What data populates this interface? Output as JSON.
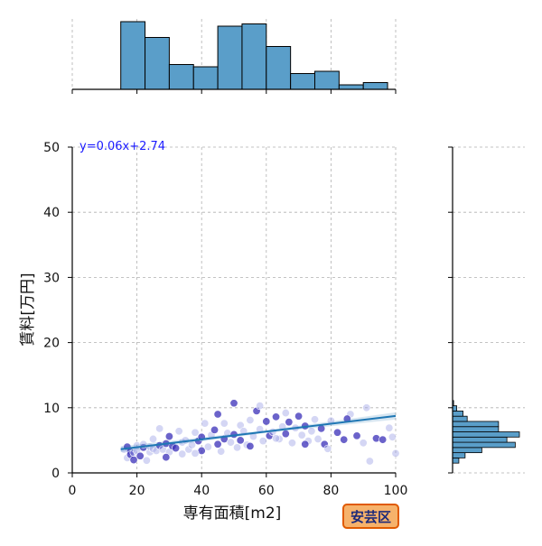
{
  "chart_data": {
    "type": "scatter",
    "xlabel": "専有面積[m2]",
    "ylabel": "賃料[万円]",
    "xlim": [
      0,
      100
    ],
    "ylim": [
      0,
      50
    ],
    "xticks": [
      "0",
      "20",
      "40",
      "60",
      "80",
      "100"
    ],
    "yticks": [
      "0",
      "10",
      "20",
      "30",
      "40",
      "50"
    ],
    "grid": true,
    "annotation": "y=0.06x+2.74",
    "badge": "安芸区",
    "regression": {
      "slope": 0.06,
      "intercept": 2.74,
      "x_range": [
        15,
        100
      ]
    },
    "points": [
      [
        16,
        3.6
      ],
      [
        17,
        2.3
      ],
      [
        17,
        4.0
      ],
      [
        18,
        3.3
      ],
      [
        18,
        2.8
      ],
      [
        19,
        2.0
      ],
      [
        19,
        3.1
      ],
      [
        20,
        4.2
      ],
      [
        20,
        3.4
      ],
      [
        21,
        2.6
      ],
      [
        22,
        3.9
      ],
      [
        22,
        4.4
      ],
      [
        23,
        1.9
      ],
      [
        24,
        3.2
      ],
      [
        24,
        4.0
      ],
      [
        25,
        3.7
      ],
      [
        25,
        5.2
      ],
      [
        26,
        3.4
      ],
      [
        27,
        6.8
      ],
      [
        27,
        4.2
      ],
      [
        28,
        3.6
      ],
      [
        29,
        4.5
      ],
      [
        30,
        3.2
      ],
      [
        30,
        5.6
      ],
      [
        31,
        4.1
      ],
      [
        32,
        3.8
      ],
      [
        33,
        6.4
      ],
      [
        34,
        4.7
      ],
      [
        34,
        2.9
      ],
      [
        35,
        5.0
      ],
      [
        36,
        3.6
      ],
      [
        37,
        4.3
      ],
      [
        38,
        6.2
      ],
      [
        39,
        4.9
      ],
      [
        40,
        3.4
      ],
      [
        40,
        5.5
      ],
      [
        41,
        7.6
      ],
      [
        42,
        4.0
      ],
      [
        43,
        5.8
      ],
      [
        44,
        6.6
      ],
      [
        45,
        4.4
      ],
      [
        45,
        9.0
      ],
      [
        46,
        3.3
      ],
      [
        47,
        5.2
      ],
      [
        48,
        6.1
      ],
      [
        49,
        4.7
      ],
      [
        50,
        10.7
      ],
      [
        50,
        5.9
      ],
      [
        51,
        3.9
      ],
      [
        52,
        7.3
      ],
      [
        52,
        5.0
      ],
      [
        53,
        6.4
      ],
      [
        54,
        4.3
      ],
      [
        55,
        8.1
      ],
      [
        56,
        5.6
      ],
      [
        57,
        9.5
      ],
      [
        58,
        10.3
      ],
      [
        58,
        6.7
      ],
      [
        59,
        4.9
      ],
      [
        60,
        7.9
      ],
      [
        61,
        5.7
      ],
      [
        62,
        6.3
      ],
      [
        63,
        8.6
      ],
      [
        64,
        5.2
      ],
      [
        65,
        7.1
      ],
      [
        66,
        6.0
      ],
      [
        67,
        7.8
      ],
      [
        68,
        4.6
      ],
      [
        69,
        6.9
      ],
      [
        70,
        8.7
      ],
      [
        71,
        5.8
      ],
      [
        72,
        7.2
      ],
      [
        73,
        4.9
      ],
      [
        74,
        6.4
      ],
      [
        75,
        8.2
      ],
      [
        76,
        5.2
      ],
      [
        77,
        6.8
      ],
      [
        78,
        4.4
      ],
      [
        80,
        8.0
      ],
      [
        82,
        6.2
      ],
      [
        84,
        5.1
      ],
      [
        86,
        9.0
      ],
      [
        88,
        5.7
      ],
      [
        90,
        4.6
      ],
      [
        91,
        10.0
      ],
      [
        92,
        1.8
      ],
      [
        94,
        5.3
      ],
      [
        96,
        5.1
      ],
      [
        98,
        6.9
      ],
      [
        99,
        5.5
      ],
      [
        100,
        3.0
      ],
      [
        85,
        8.3
      ],
      [
        79,
        3.7
      ],
      [
        66,
        9.2
      ],
      [
        55,
        4.1
      ],
      [
        47,
        7.6
      ],
      [
        38,
        3.0
      ],
      [
        29,
        2.4
      ],
      [
        63,
        5.3
      ],
      [
        72,
        4.4
      ]
    ],
    "top_histogram": {
      "bin_edges": [
        15,
        22.5,
        30,
        37.5,
        45,
        52.5,
        60,
        67.5,
        75,
        82.5,
        90,
        97.5
      ],
      "counts": [
        30,
        23,
        11,
        10,
        28,
        29,
        19,
        7,
        8,
        2,
        3
      ]
    },
    "right_histogram": {
      "bin_edges": [
        1.5,
        2.3,
        3.1,
        3.9,
        4.7,
        5.5,
        6.3,
        7.1,
        7.9,
        8.7,
        9.5,
        10.3,
        11.1
      ],
      "counts": [
        3,
        6,
        14,
        30,
        26,
        32,
        22,
        22,
        7,
        5,
        2,
        0.5
      ]
    }
  }
}
